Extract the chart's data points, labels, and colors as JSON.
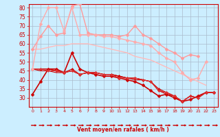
{
  "x": [
    0,
    1,
    2,
    3,
    4,
    5,
    6,
    7,
    8,
    9,
    10,
    11,
    12,
    13,
    14,
    15,
    16,
    17,
    18,
    19,
    20,
    21,
    22,
    23
  ],
  "lines": [
    {
      "y": [
        32,
        39,
        46,
        46,
        44,
        55,
        46,
        44,
        43,
        42,
        42,
        41,
        40,
        39,
        37,
        34,
        31,
        32,
        30,
        28,
        29,
        31,
        33,
        33
      ],
      "color": "#cc0000",
      "lw": 1.2,
      "marker": "D",
      "ms": 2.5
    },
    {
      "y": [
        46,
        46,
        46,
        45,
        44,
        45,
        43,
        44,
        44,
        43,
        43,
        42,
        41,
        41,
        40,
        39,
        34,
        32,
        31,
        28,
        31,
        30,
        33,
        33
      ],
      "color": "#cc0000",
      "lw": 0.8,
      "marker": "D",
      "ms": 2.0
    },
    {
      "y": [
        46,
        45,
        45,
        44,
        44,
        45,
        43,
        44,
        44,
        43,
        43,
        42,
        41,
        40,
        40,
        39,
        34,
        33,
        31,
        28,
        31,
        30,
        33,
        33
      ],
      "color": "#cc0000",
      "lw": 0.8,
      "marker": null,
      "ms": 0
    },
    {
      "y": [
        46,
        46,
        46,
        45,
        44,
        46,
        43,
        44,
        44,
        43,
        43,
        42,
        41,
        41,
        40,
        39,
        35,
        33,
        31,
        28,
        31,
        30,
        33,
        33
      ],
      "color": "#cc0000",
      "lw": 0.8,
      "marker": "D",
      "ms": 2.0
    },
    {
      "y": [
        46,
        46,
        45,
        45,
        44,
        45,
        43,
        44,
        44,
        43,
        43,
        41,
        41,
        41,
        40,
        39,
        34,
        33,
        31,
        28,
        31,
        30,
        33,
        33
      ],
      "color": "#dd3333",
      "lw": 0.8,
      "marker": "D",
      "ms": 2.0
    },
    {
      "y": [
        57,
        64,
        70,
        65,
        66,
        81,
        82,
        66,
        65,
        65,
        65,
        64,
        65,
        70,
        65,
        63,
        60,
        57,
        55,
        52,
        54,
        53,
        null,
        null
      ],
      "color": "#ff9999",
      "lw": 1.0,
      "marker": "D",
      "ms": 2.5
    },
    {
      "y": [
        46,
        71,
        80,
        80,
        67,
        80,
        65,
        65,
        65,
        64,
        64,
        63,
        62,
        61,
        60,
        59,
        55,
        52,
        50,
        44,
        40,
        41,
        50,
        null
      ],
      "color": "#ffaaaa",
      "lw": 1.0,
      "marker": "D",
      "ms": 2.5
    },
    {
      "y": [
        57,
        57,
        58,
        59,
        59,
        60,
        60,
        60,
        59,
        58,
        57,
        56,
        55,
        53,
        52,
        51,
        49,
        47,
        45,
        43,
        41,
        39,
        37,
        null
      ],
      "color": "#ffbbbb",
      "lw": 1.0,
      "marker": null,
      "ms": 0
    }
  ],
  "xlabel": "Vent moyen/en rafales ( km/h )",
  "ylim": [
    25,
    82
  ],
  "yticks": [
    30,
    35,
    40,
    45,
    50,
    55,
    60,
    65,
    70,
    75,
    80
  ],
  "xticks": [
    0,
    1,
    2,
    3,
    4,
    5,
    6,
    7,
    8,
    9,
    10,
    11,
    12,
    13,
    14,
    15,
    16,
    17,
    18,
    19,
    20,
    21,
    22,
    23
  ],
  "bg_color": "#cceeff",
  "grid_color": "#aabbcc",
  "arrow_color": "#cc0000",
  "xlabel_color": "#cc0000",
  "tick_color": "#cc0000",
  "axis_color": "#cc0000"
}
